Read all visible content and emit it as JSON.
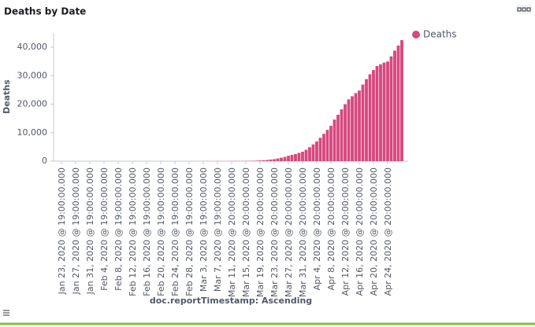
{
  "chart_data": {
    "type": "bar",
    "title": "Deaths by Date",
    "x_label": "doc.reportTimestamp: Ascending",
    "y_label": "Deaths",
    "categories": [
      "Jan 23, 2020 @ 19:00:00.000",
      null,
      null,
      null,
      "Jan 27, 2020 @ 19:00:00.000",
      null,
      null,
      null,
      "Jan 31, 2020 @ 19:00:00.000",
      null,
      null,
      null,
      "Feb 4, 2020 @ 19:00:00.000",
      null,
      null,
      null,
      "Feb 8, 2020 @ 19:00:00.000",
      null,
      null,
      null,
      "Feb 12, 2020 @ 19:00:00.000",
      null,
      null,
      null,
      "Feb 16, 2020 @ 19:00:00.000",
      null,
      null,
      null,
      "Feb 20, 2020 @ 19:00:00.000",
      null,
      null,
      null,
      "Feb 24, 2020 @ 19:00:00.000",
      null,
      null,
      null,
      "Feb 28, 2020 @ 19:00:00.000",
      null,
      null,
      null,
      "Mar 3, 2020 @ 19:00:00.000",
      null,
      null,
      null,
      "Mar 7, 2020 @ 19:00:00.000",
      null,
      null,
      null,
      "Mar 11, 2020 @ 20:00:00.000",
      null,
      null,
      null,
      "Mar 15, 2020 @ 20:00:00.000",
      null,
      null,
      null,
      "Mar 19, 2020 @ 20:00:00.000",
      null,
      null,
      null,
      "Mar 23, 2020 @ 20:00:00.000",
      null,
      null,
      null,
      "Mar 27, 2020 @ 20:00:00.000",
      null,
      null,
      null,
      "Mar 31, 2020 @ 20:00:00.000",
      null,
      null,
      null,
      "Apr 4, 2020 @ 20:00:00.000",
      null,
      null,
      null,
      "Apr 8, 2020 @ 20:00:00.000",
      null,
      null,
      null,
      "Apr 12, 2020 @ 20:00:00.000",
      null,
      null,
      null,
      "Apr 16, 2020 @ 20:00:00.000",
      null,
      null,
      null,
      "Apr 20, 2020 @ 20:00:00.000",
      null,
      null,
      null,
      "Apr 24, 2020 @ 20:00:00.000",
      null,
      null,
      null,
      null
    ],
    "series": [
      {
        "name": "Deaths",
        "color": "#d6487e",
        "values": [
          0,
          0,
          0,
          0,
          0,
          0,
          0,
          0,
          0,
          0,
          0,
          0,
          0,
          0,
          0,
          0,
          0,
          0,
          0,
          0,
          0,
          0,
          0,
          0,
          0,
          0,
          0,
          0,
          0,
          0,
          0,
          0,
          0,
          0,
          0,
          0,
          0,
          1,
          1,
          6,
          9,
          11,
          12,
          15,
          19,
          22,
          26,
          30,
          38,
          41,
          48,
          58,
          73,
          99,
          133,
          190,
          250,
          320,
          420,
          560,
          700,
          950,
          1200,
          1500,
          1900,
          2200,
          2500,
          2900,
          3300,
          4000,
          4900,
          5900,
          6900,
          8200,
          9600,
          11000,
          12400,
          14600,
          16300,
          18200,
          20000,
          21700,
          22800,
          23900,
          24800,
          26900,
          28800,
          30500,
          32000,
          33400,
          34000,
          34600,
          35000,
          36800,
          38800,
          40600,
          42500
        ]
      }
    ],
    "ylim": [
      0,
      45000
    ],
    "yticks": [
      0,
      {
        "value": 10000,
        "label": "10,000"
      },
      {
        "value": 20000,
        "label": "20,000"
      },
      {
        "value": 30000,
        "label": "30,000"
      },
      {
        "value": 40000,
        "label": "40,000"
      }
    ],
    "legend": "right"
  }
}
